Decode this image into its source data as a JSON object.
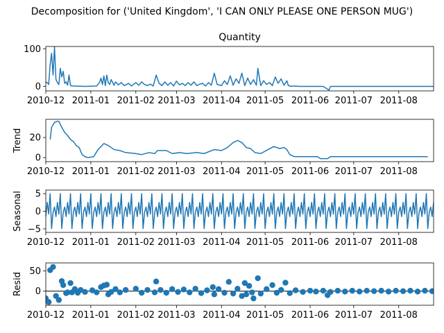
{
  "chart_data": {
    "type": "line",
    "suptitle": "Decomposition for ('United Kingdom', 'I CAN ONLY PLEASE ONE PERSON MUG')",
    "x_ticks": [
      "2010-12",
      "2011-01",
      "2011-02",
      "2011-03",
      "2011-04",
      "2011-05",
      "2011-06",
      "2011-07",
      "2011-08"
    ],
    "x_range": [
      "2010-12-01",
      "2011-08-25"
    ],
    "color": "#1f77b4",
    "panels": [
      {
        "key": "observed",
        "title": "Quantity",
        "ylabel": "",
        "kind": "line",
        "ylim": [
          -12,
          106
        ],
        "yticks": [
          "0",
          "100"
        ],
        "ytick_values": [
          0,
          100
        ],
        "series": [
          [
            "2010-12-01",
            12
          ],
          [
            "2010-12-02",
            10
          ],
          [
            "2010-12-03",
            5
          ],
          [
            "2010-12-04",
            58
          ],
          [
            "2010-12-05",
            88
          ],
          [
            "2010-12-06",
            30
          ],
          [
            "2010-12-07",
            105
          ],
          [
            "2010-12-08",
            18
          ],
          [
            "2010-12-09",
            10
          ],
          [
            "2010-12-10",
            5
          ],
          [
            "2010-12-11",
            48
          ],
          [
            "2010-12-12",
            25
          ],
          [
            "2010-12-13",
            40
          ],
          [
            "2010-12-14",
            8
          ],
          [
            "2010-12-15",
            12
          ],
          [
            "2010-12-16",
            3
          ],
          [
            "2010-12-17",
            30
          ],
          [
            "2010-12-18",
            2
          ],
          [
            "2010-12-20",
            1
          ],
          [
            "2010-12-28",
            0
          ],
          [
            "2011-01-05",
            1
          ],
          [
            "2011-01-07",
            10
          ],
          [
            "2011-01-08",
            22
          ],
          [
            "2011-01-09",
            5
          ],
          [
            "2011-01-10",
            28
          ],
          [
            "2011-01-11",
            2
          ],
          [
            "2011-01-12",
            30
          ],
          [
            "2011-01-13",
            10
          ],
          [
            "2011-01-14",
            5
          ],
          [
            "2011-01-15",
            18
          ],
          [
            "2011-01-17",
            3
          ],
          [
            "2011-01-18",
            12
          ],
          [
            "2011-01-20",
            4
          ],
          [
            "2011-01-22",
            10
          ],
          [
            "2011-01-24",
            2
          ],
          [
            "2011-01-27",
            8
          ],
          [
            "2011-01-29",
            1
          ],
          [
            "2011-02-01",
            10
          ],
          [
            "2011-02-03",
            3
          ],
          [
            "2011-02-05",
            12
          ],
          [
            "2011-02-07",
            5
          ],
          [
            "2011-02-09",
            2
          ],
          [
            "2011-02-11",
            6
          ],
          [
            "2011-02-13",
            1
          ],
          [
            "2011-02-15",
            30
          ],
          [
            "2011-02-17",
            8
          ],
          [
            "2011-02-19",
            2
          ],
          [
            "2011-02-21",
            12
          ],
          [
            "2011-02-23",
            3
          ],
          [
            "2011-02-25",
            10
          ],
          [
            "2011-02-27",
            1
          ],
          [
            "2011-03-01",
            14
          ],
          [
            "2011-03-03",
            4
          ],
          [
            "2011-03-05",
            8
          ],
          [
            "2011-03-07",
            2
          ],
          [
            "2011-03-09",
            10
          ],
          [
            "2011-03-11",
            3
          ],
          [
            "2011-03-13",
            12
          ],
          [
            "2011-03-15",
            2
          ],
          [
            "2011-03-17",
            6
          ],
          [
            "2011-03-19",
            8
          ],
          [
            "2011-03-21",
            1
          ],
          [
            "2011-03-23",
            10
          ],
          [
            "2011-03-25",
            3
          ],
          [
            "2011-03-27",
            35
          ],
          [
            "2011-03-29",
            5
          ],
          [
            "2011-04-01",
            2
          ],
          [
            "2011-04-03",
            15
          ],
          [
            "2011-04-05",
            5
          ],
          [
            "2011-04-07",
            28
          ],
          [
            "2011-04-09",
            3
          ],
          [
            "2011-04-11",
            20
          ],
          [
            "2011-04-13",
            8
          ],
          [
            "2011-04-15",
            35
          ],
          [
            "2011-04-17",
            2
          ],
          [
            "2011-04-19",
            22
          ],
          [
            "2011-04-21",
            5
          ],
          [
            "2011-04-23",
            18
          ],
          [
            "2011-04-25",
            3
          ],
          [
            "2011-04-26",
            48
          ],
          [
            "2011-04-28",
            2
          ],
          [
            "2011-04-30",
            15
          ],
          [
            "2011-05-02",
            5
          ],
          [
            "2011-05-04",
            10
          ],
          [
            "2011-05-06",
            2
          ],
          [
            "2011-05-08",
            25
          ],
          [
            "2011-05-10",
            8
          ],
          [
            "2011-05-12",
            20
          ],
          [
            "2011-05-14",
            3
          ],
          [
            "2011-05-16",
            15
          ],
          [
            "2011-05-17",
            2
          ],
          [
            "2011-05-19",
            0
          ],
          [
            "2011-05-20",
            1
          ],
          [
            "2011-05-25",
            0
          ],
          [
            "2011-06-10",
            0
          ],
          [
            "2011-06-14",
            -10
          ],
          [
            "2011-06-15",
            0
          ],
          [
            "2011-08-25",
            0
          ]
        ]
      },
      {
        "key": "trend",
        "title": "",
        "ylabel": "Trend",
        "kind": "line",
        "ylim": [
          -4,
          38
        ],
        "yticks": [
          "0",
          "20"
        ],
        "ytick_values": [
          0,
          20
        ],
        "series": [
          [
            "2010-12-04",
            18
          ],
          [
            "2010-12-05",
            30
          ],
          [
            "2010-12-07",
            35
          ],
          [
            "2010-12-09",
            36
          ],
          [
            "2010-12-10",
            36
          ],
          [
            "2010-12-12",
            30
          ],
          [
            "2010-12-14",
            25
          ],
          [
            "2010-12-16",
            22
          ],
          [
            "2010-12-18",
            18
          ],
          [
            "2010-12-20",
            16
          ],
          [
            "2010-12-22",
            12
          ],
          [
            "2010-12-24",
            10
          ],
          [
            "2010-12-26",
            3
          ],
          [
            "2010-12-28",
            1
          ],
          [
            "2010-12-30",
            0
          ],
          [
            "2011-01-03",
            1
          ],
          [
            "2011-01-06",
            8
          ],
          [
            "2011-01-10",
            14
          ],
          [
            "2011-01-13",
            12
          ],
          [
            "2011-01-17",
            8
          ],
          [
            "2011-01-21",
            7
          ],
          [
            "2011-01-25",
            5
          ],
          [
            "2011-02-01",
            4
          ],
          [
            "2011-02-05",
            3
          ],
          [
            "2011-02-10",
            5
          ],
          [
            "2011-02-14",
            4
          ],
          [
            "2011-02-16",
            7
          ],
          [
            "2011-02-22",
            7
          ],
          [
            "2011-02-26",
            4
          ],
          [
            "2011-03-03",
            5
          ],
          [
            "2011-03-08",
            4
          ],
          [
            "2011-03-15",
            5
          ],
          [
            "2011-03-20",
            4
          ],
          [
            "2011-03-27",
            8
          ],
          [
            "2011-04-01",
            7
          ],
          [
            "2011-04-05",
            10
          ],
          [
            "2011-04-09",
            15
          ],
          [
            "2011-04-12",
            17
          ],
          [
            "2011-04-15",
            15
          ],
          [
            "2011-04-18",
            10
          ],
          [
            "2011-04-21",
            9
          ],
          [
            "2011-04-24",
            5
          ],
          [
            "2011-04-28",
            4
          ],
          [
            "2011-05-03",
            8
          ],
          [
            "2011-05-07",
            11
          ],
          [
            "2011-05-11",
            9
          ],
          [
            "2011-05-14",
            10
          ],
          [
            "2011-05-16",
            8
          ],
          [
            "2011-05-18",
            3
          ],
          [
            "2011-05-21",
            1
          ],
          [
            "2011-06-06",
            1
          ],
          [
            "2011-06-08",
            -1
          ],
          [
            "2011-06-13",
            -1
          ],
          [
            "2011-06-15",
            1
          ],
          [
            "2011-08-21",
            1
          ]
        ]
      },
      {
        "key": "seasonal",
        "title": "",
        "ylabel": "Seasonal",
        "kind": "line",
        "ylim": [
          -6,
          6
        ],
        "yticks": [
          "5",
          "0",
          "−5"
        ],
        "ytick_values": [
          5,
          0,
          -5
        ],
        "period": 7,
        "start": "2010-12-01",
        "end": "2011-08-25",
        "pattern": [
          -1.5,
          2.5,
          -0.8,
          5.0,
          -4.9,
          -0.3,
          1.2
        ]
      },
      {
        "key": "resid",
        "title": "",
        "ylabel": "Resid",
        "kind": "scatter",
        "ylim": [
          -35,
          70
        ],
        "yticks": [
          "0",
          "50"
        ],
        "ytick_values": [
          0,
          50
        ],
        "baseline": 0,
        "points": [
          [
            "2010-12-01",
            -18
          ],
          [
            "2010-12-03",
            -27
          ],
          [
            "2010-12-04",
            52
          ],
          [
            "2010-12-06",
            60
          ],
          [
            "2010-12-08",
            -12
          ],
          [
            "2010-12-10",
            -22
          ],
          [
            "2010-12-12",
            25
          ],
          [
            "2010-12-13",
            15
          ],
          [
            "2010-12-15",
            -5
          ],
          [
            "2010-12-16",
            -3
          ],
          [
            "2010-12-18",
            20
          ],
          [
            "2010-12-19",
            -3
          ],
          [
            "2010-12-21",
            5
          ],
          [
            "2010-12-23",
            -4
          ],
          [
            "2010-12-25",
            3
          ],
          [
            "2010-12-28",
            -2
          ],
          [
            "2011-01-02",
            2
          ],
          [
            "2011-01-05",
            -3
          ],
          [
            "2011-01-08",
            10
          ],
          [
            "2011-01-10",
            14
          ],
          [
            "2011-01-12",
            16
          ],
          [
            "2011-01-13",
            -8
          ],
          [
            "2011-01-15",
            -2
          ],
          [
            "2011-01-18",
            5
          ],
          [
            "2011-01-21",
            -3
          ],
          [
            "2011-01-25",
            3
          ],
          [
            "2011-02-01",
            6
          ],
          [
            "2011-02-05",
            -4
          ],
          [
            "2011-02-09",
            3
          ],
          [
            "2011-02-14",
            -3
          ],
          [
            "2011-02-15",
            24
          ],
          [
            "2011-02-18",
            3
          ],
          [
            "2011-02-22",
            -4
          ],
          [
            "2011-02-26",
            5
          ],
          [
            "2011-03-02",
            -2
          ],
          [
            "2011-03-06",
            4
          ],
          [
            "2011-03-10",
            -3
          ],
          [
            "2011-03-14",
            6
          ],
          [
            "2011-03-18",
            -5
          ],
          [
            "2011-03-22",
            2
          ],
          [
            "2011-03-26",
            10
          ],
          [
            "2011-03-27",
            -8
          ],
          [
            "2011-03-30",
            5
          ],
          [
            "2011-04-03",
            -4
          ],
          [
            "2011-04-06",
            23
          ],
          [
            "2011-04-09",
            -6
          ],
          [
            "2011-04-12",
            6
          ],
          [
            "2011-04-15",
            -12
          ],
          [
            "2011-04-17",
            20
          ],
          [
            "2011-04-18",
            -8
          ],
          [
            "2011-04-20",
            13
          ],
          [
            "2011-04-22",
            -3
          ],
          [
            "2011-04-23",
            -18
          ],
          [
            "2011-04-26",
            32
          ],
          [
            "2011-04-28",
            -6
          ],
          [
            "2011-05-02",
            5
          ],
          [
            "2011-05-06",
            15
          ],
          [
            "2011-05-09",
            -4
          ],
          [
            "2011-05-12",
            3
          ],
          [
            "2011-05-15",
            21
          ],
          [
            "2011-05-18",
            -5
          ],
          [
            "2011-05-22",
            2
          ],
          [
            "2011-05-27",
            -2
          ],
          [
            "2011-06-01",
            1
          ],
          [
            "2011-06-05",
            -1
          ],
          [
            "2011-06-10",
            1
          ],
          [
            "2011-06-13",
            -10
          ],
          [
            "2011-06-15",
            -2
          ],
          [
            "2011-06-20",
            1
          ],
          [
            "2011-06-25",
            -1
          ],
          [
            "2011-06-30",
            1
          ],
          [
            "2011-07-05",
            -1
          ],
          [
            "2011-07-10",
            1
          ],
          [
            "2011-07-15",
            0
          ],
          [
            "2011-07-20",
            1
          ],
          [
            "2011-07-25",
            -1
          ],
          [
            "2011-07-30",
            1
          ],
          [
            "2011-08-04",
            0
          ],
          [
            "2011-08-09",
            1
          ],
          [
            "2011-08-14",
            -1
          ],
          [
            "2011-08-19",
            1
          ],
          [
            "2011-08-24",
            0
          ]
        ]
      }
    ]
  }
}
